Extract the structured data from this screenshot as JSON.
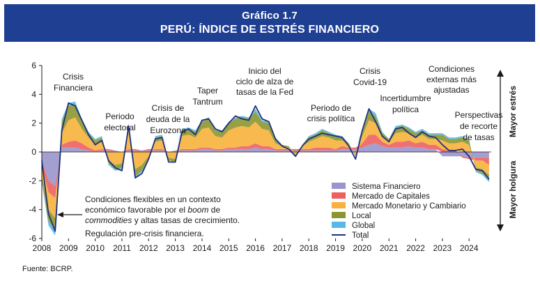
{
  "header": {
    "kicker": "Gráfico 1.7",
    "title": "PERÚ: ÍNDICE DE ESTRÉS FINANCIERO"
  },
  "source": "Fuente: BCRP.",
  "colors": {
    "header_bg": "#1f3f93",
    "Sistema Financiero": "#9a95cc",
    "Mercado de Capitales": "#ee6060",
    "Mercado Monetario y Cambiario": "#f7b13c",
    "Local": "#8c9630",
    "Global": "#5ab8e6",
    "Total": "#1f2f7a"
  },
  "annotations": {
    "crisis_financiera": [
      "Crisis",
      "Financiera"
    ],
    "periodo_electoral": [
      "Periodo",
      "electoral"
    ],
    "crisis_eurozona": [
      "Crisis de",
      "deuda de la",
      "Eurozona"
    ],
    "taper_tantrum": [
      "Taper",
      "Tantrum"
    ],
    "inicio_ciclo": [
      "Inicio del",
      "ciclo de alza de",
      "tasas de la Fed"
    ],
    "crisis_politica": [
      "Periodo de",
      "crisis política"
    ],
    "covid": [
      "Crisis",
      "Covid-19"
    ],
    "incertidumbre": [
      "Incertidumbre",
      "política"
    ],
    "condiciones_externas": [
      "Condiciones",
      "externas más",
      "ajustadas"
    ],
    "recorte_tasas": [
      "Perspectivas",
      "de recorte",
      "de tasas"
    ],
    "boom_line1": "Condiciones  flexibles en un contexto",
    "boom_line2_a": "económico favorable por el ",
    "boom_line2_b": "boom",
    "boom_line2_c": " de",
    "boom_line3_a": "commodities",
    "boom_line3_b": " y altas tasas de crecimiento.",
    "boom_line4": "Regulación pre-crisis financiera."
  },
  "side_labels": {
    "top": "Mayor estrés",
    "bottom": "Mayor holgura"
  },
  "chart_data": {
    "type": "area",
    "stacked": true,
    "xlim": [
      2008,
      2024.83
    ],
    "ylim": [
      -6,
      6
    ],
    "yticks": [
      6,
      4,
      2,
      0,
      -2,
      -4,
      -6
    ],
    "xticks": [
      "2008",
      "2009",
      "2010",
      "2011",
      "2012",
      "2013",
      "2014",
      "2015",
      "2016",
      "2017",
      "2018",
      "2019",
      "2020",
      "2021",
      "2022",
      "2023",
      "2024"
    ],
    "legend_position": "lower-right",
    "x": [
      2008.0,
      2008.25,
      2008.5,
      2008.75,
      2009.0,
      2009.25,
      2009.5,
      2009.75,
      2010.0,
      2010.25,
      2010.5,
      2010.75,
      2011.0,
      2011.25,
      2011.5,
      2011.75,
      2012.0,
      2012.25,
      2012.5,
      2012.75,
      2013.0,
      2013.25,
      2013.5,
      2013.75,
      2014.0,
      2014.25,
      2014.5,
      2014.75,
      2015.0,
      2015.25,
      2015.5,
      2015.75,
      2016.0,
      2016.25,
      2016.5,
      2016.75,
      2017.0,
      2017.25,
      2017.5,
      2017.75,
      2018.0,
      2018.25,
      2018.5,
      2018.75,
      2019.0,
      2019.25,
      2019.5,
      2019.75,
      2020.0,
      2020.25,
      2020.5,
      2020.75,
      2021.0,
      2021.25,
      2021.5,
      2021.75,
      2022.0,
      2022.25,
      2022.5,
      2022.75,
      2023.0,
      2023.25,
      2023.5,
      2023.75,
      2024.0,
      2024.25,
      2024.5,
      2024.75
    ],
    "series": [
      {
        "name": "Sistema Financiero",
        "values": [
          -0.6,
          -2.0,
          -2.4,
          0.3,
          0.3,
          0.3,
          0.2,
          0.1,
          0.0,
          0.1,
          0.1,
          0.1,
          0.0,
          0.1,
          0.1,
          0.1,
          0.1,
          0.1,
          0.1,
          0.0,
          0.1,
          0.1,
          0.1,
          0.1,
          0.2,
          0.2,
          0.1,
          0.1,
          0.2,
          0.2,
          0.2,
          0.2,
          0.3,
          0.2,
          0.2,
          0.1,
          0.1,
          0.1,
          0.1,
          0.1,
          0.1,
          0.1,
          0.1,
          0.1,
          0.1,
          0.2,
          0.2,
          0.2,
          0.3,
          0.5,
          0.6,
          0.4,
          0.3,
          0.3,
          0.3,
          0.4,
          0.3,
          0.3,
          0.2,
          0.2,
          -0.3,
          -0.3,
          -0.3,
          -0.3,
          -0.4,
          -0.4,
          -0.4,
          -0.4
        ]
      },
      {
        "name": "Mercado de Capitales",
        "values": [
          -0.3,
          -0.8,
          -0.8,
          0.2,
          0.4,
          0.5,
          0.4,
          0.2,
          0.1,
          0.1,
          0.1,
          0.0,
          0.0,
          0.1,
          0.1,
          0.0,
          0.1,
          0.1,
          0.1,
          0.0,
          0.0,
          0.1,
          0.1,
          0.1,
          0.1,
          0.1,
          0.1,
          0.1,
          0.1,
          0.1,
          0.2,
          0.2,
          0.3,
          0.2,
          0.2,
          0.1,
          0.1,
          0.1,
          0.1,
          0.1,
          0.1,
          0.2,
          0.2,
          0.2,
          0.1,
          0.2,
          0.1,
          0.1,
          0.3,
          0.7,
          0.6,
          0.3,
          0.2,
          0.4,
          0.4,
          0.4,
          0.3,
          0.4,
          0.3,
          0.3,
          0.2,
          0.1,
          0.1,
          -0.1,
          -0.1,
          -0.2,
          -0.2,
          -0.5
        ]
      },
      {
        "name": "Mercado Monetario y Cambiario",
        "values": [
          -0.7,
          -1.2,
          -1.4,
          0.8,
          1.5,
          1.6,
          1.0,
          0.7,
          0.4,
          0.5,
          -0.6,
          -0.9,
          -0.8,
          1.2,
          -1.2,
          -0.9,
          -0.3,
          0.5,
          0.6,
          -0.4,
          -0.5,
          0.9,
          1.0,
          0.8,
          1.3,
          1.4,
          0.9,
          0.8,
          1.2,
          1.4,
          1.4,
          1.3,
          1.5,
          1.2,
          1.1,
          0.4,
          0.2,
          0.1,
          -0.2,
          0.2,
          0.5,
          0.6,
          0.8,
          0.7,
          0.6,
          0.4,
          0.2,
          -0.2,
          0.5,
          1.0,
          0.8,
          0.3,
          0.2,
          0.6,
          0.7,
          0.5,
          0.4,
          0.5,
          0.4,
          0.4,
          0.6,
          0.5,
          0.5,
          0.7,
          0.5,
          -0.5,
          -0.6,
          -0.7
        ]
      },
      {
        "name": "Local",
        "values": [
          -0.4,
          -0.8,
          -0.8,
          0.8,
          1.0,
          0.9,
          0.6,
          0.3,
          0.3,
          0.3,
          -0.2,
          -0.3,
          -0.3,
          0.5,
          -0.5,
          -0.4,
          -0.2,
          0.3,
          0.3,
          -0.2,
          -0.2,
          0.4,
          0.4,
          0.4,
          0.5,
          0.6,
          0.4,
          0.4,
          0.5,
          0.6,
          0.6,
          0.6,
          0.7,
          0.5,
          0.5,
          0.3,
          0.1,
          0.1,
          -0.1,
          0.1,
          0.3,
          0.3,
          0.4,
          0.3,
          0.3,
          0.2,
          0.1,
          -0.1,
          0.3,
          0.6,
          0.5,
          0.3,
          0.2,
          0.4,
          0.4,
          0.3,
          0.3,
          0.3,
          0.3,
          0.3,
          0.4,
          0.3,
          0.3,
          0.3,
          0.3,
          -0.2,
          -0.3,
          -0.3
        ]
      },
      {
        "name": "Global",
        "values": [
          -0.1,
          -0.3,
          -0.4,
          0.2,
          0.2,
          0.2,
          0.1,
          0.1,
          0.1,
          0.1,
          -0.1,
          -0.1,
          -0.1,
          0.1,
          -0.1,
          -0.1,
          -0.1,
          0.1,
          0.1,
          0.0,
          0.0,
          0.1,
          0.1,
          0.1,
          0.1,
          0.1,
          0.1,
          0.1,
          0.1,
          0.1,
          0.1,
          0.1,
          0.2,
          0.1,
          0.1,
          0.1,
          0.0,
          0.0,
          0.0,
          0.0,
          0.1,
          0.1,
          0.1,
          0.1,
          0.1,
          0.1,
          0.0,
          0.0,
          0.1,
          0.2,
          0.2,
          0.1,
          0.0,
          0.1,
          0.1,
          0.1,
          0.1,
          0.1,
          0.1,
          0.1,
          0.1,
          0.1,
          0.1,
          0.1,
          0.1,
          -0.1,
          -0.1,
          -0.2
        ]
      },
      {
        "name": "Total",
        "values": [
          -0.6,
          -4.3,
          -5.5,
          1.5,
          3.4,
          3.2,
          2.2,
          1.2,
          0.5,
          0.8,
          -0.6,
          -1.1,
          -1.3,
          1.8,
          -1.8,
          -1.5,
          -0.5,
          0.9,
          1.0,
          -0.7,
          -0.7,
          1.4,
          1.6,
          1.2,
          2.2,
          2.3,
          1.6,
          1.4,
          2.0,
          2.5,
          2.3,
          2.2,
          3.2,
          2.3,
          2.1,
          0.9,
          0.4,
          0.2,
          -0.3,
          0.4,
          0.9,
          1.1,
          1.3,
          1.2,
          1.1,
          1.0,
          0.4,
          -0.5,
          1.5,
          3.0,
          2.1,
          1.1,
          0.7,
          1.6,
          1.7,
          1.3,
          1.0,
          1.4,
          1.1,
          1.0,
          0.5,
          0.1,
          0.1,
          0.2,
          -0.3,
          -1.2,
          -1.3,
          -1.9
        ]
      }
    ]
  }
}
